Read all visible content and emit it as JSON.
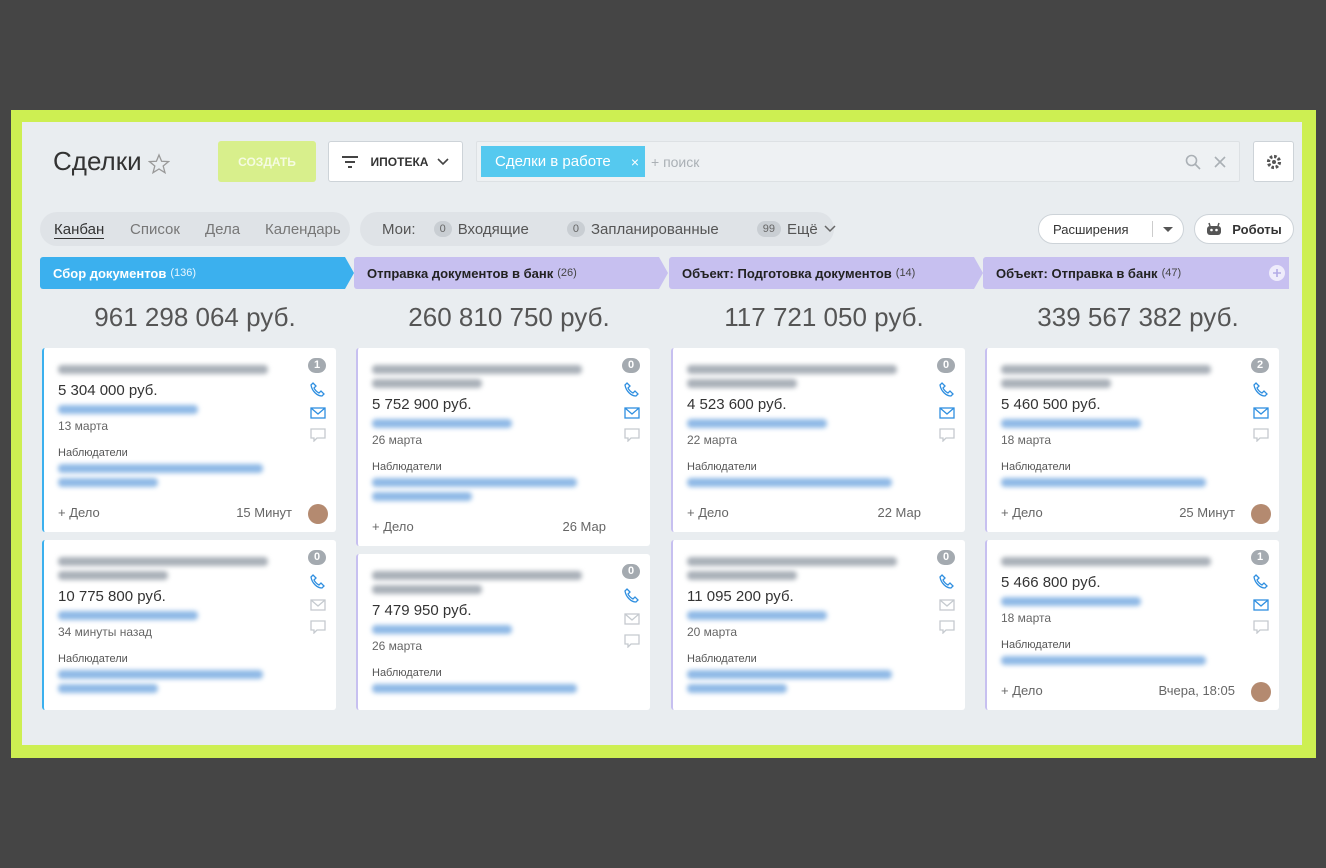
{
  "header": {
    "title": "Сделки",
    "create": "СОЗДАТЬ",
    "filter": "ИПОТЕКА",
    "search_chip": "Сделки в работе",
    "search_placeholder": "+ поиск"
  },
  "tabs": [
    "Канбан",
    "Список",
    "Дела",
    "Календарь"
  ],
  "counters": {
    "label": "Мои:",
    "items": [
      {
        "count": "0",
        "label": "Входящие"
      },
      {
        "count": "0",
        "label": "Запланированные"
      },
      {
        "count": "99",
        "label": "Ещё"
      }
    ]
  },
  "buttons": {
    "extensions": "Расширения",
    "robots": "Роботы"
  },
  "columns": [
    {
      "title": "Сбор документов",
      "count": "(136)",
      "total": "961 298 064 руб.",
      "color": "#3bb0ee",
      "cards": [
        {
          "badge": "1",
          "amount": "5 304 000 руб.",
          "date": "13 марта",
          "observers": "Наблюдатели",
          "action": "+ Дело",
          "time": "15 Минут"
        },
        {
          "badge": "0",
          "amount": "10 775 800 руб.",
          "date": "34 минуты назад",
          "observers": "Наблюдатели"
        }
      ]
    },
    {
      "title": "Отправка документов в банк",
      "count": "(26)",
      "total": "260 810 750 руб.",
      "color": "#c7c0f0",
      "cards": [
        {
          "badge": "0",
          "amount": "5 752 900 руб.",
          "date": "26 марта",
          "observers": "Наблюдатели",
          "action": "+ Дело",
          "time": "26 Мар"
        },
        {
          "badge": "0",
          "amount": "7 479 950 руб.",
          "date": "26 марта",
          "observers": "Наблюдатели"
        }
      ]
    },
    {
      "title": "Объект: Подготовка документов",
      "count": "(14)",
      "total": "117 721 050 руб.",
      "color": "#c7c0f0",
      "cards": [
        {
          "badge": "0",
          "amount": "4 523 600 руб.",
          "date": "22 марта",
          "observers": "Наблюдатели",
          "action": "+ Дело",
          "time": "22 Мар"
        },
        {
          "badge": "0",
          "amount": "11 095 200 руб.",
          "date": "20 марта",
          "observers": "Наблюдатели"
        }
      ]
    },
    {
      "title": "Объект: Отправка в банк",
      "count": "(47)",
      "total": "339 567 382 руб.",
      "color": "#c7c0f0",
      "cards": [
        {
          "badge": "2",
          "amount": "5 460 500 руб.",
          "date": "18 марта",
          "observers": "Наблюдатели",
          "action": "+ Дело",
          "time": "25 Минут"
        },
        {
          "badge": "1",
          "amount": "5 466 800 руб.",
          "date": "18 марта",
          "observers": "Наблюдатели",
          "action": "+ Дело",
          "time": "Вчера, 18:05"
        }
      ]
    }
  ]
}
